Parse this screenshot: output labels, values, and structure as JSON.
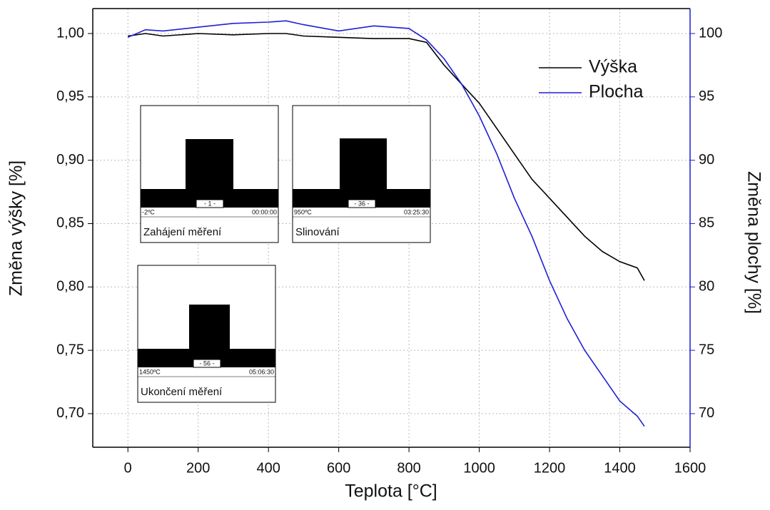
{
  "chart_data": {
    "type": "line",
    "xlabel": "Teplota [°C]",
    "ylabel": "Změna výšky [%]",
    "y2label": "Změna plochy [%]",
    "x": [
      0,
      50,
      100,
      200,
      300,
      400,
      450,
      500,
      600,
      700,
      800,
      850,
      900,
      950,
      1000,
      1050,
      1100,
      1150,
      1200,
      1250,
      1300,
      1350,
      1400,
      1450,
      1470
    ],
    "series": [
      {
        "name": "Výška",
        "color": "#000000",
        "axis": "y",
        "values": [
          0.998,
          1.0,
          0.998,
          1.0,
          0.999,
          1.0,
          1.0,
          0.998,
          0.997,
          0.996,
          0.996,
          0.993,
          0.975,
          0.96,
          0.945,
          0.925,
          0.905,
          0.885,
          0.87,
          0.855,
          0.84,
          0.828,
          0.82,
          0.815,
          0.805
        ]
      },
      {
        "name": "Plocha",
        "color": "#1f1fd6",
        "axis": "y2",
        "values": [
          99.7,
          100.3,
          100.2,
          100.5,
          100.8,
          100.9,
          101.0,
          100.7,
          100.2,
          100.6,
          100.4,
          99.5,
          98,
          96,
          93.5,
          90.5,
          87,
          84,
          80.5,
          77.5,
          75,
          73,
          71,
          69.8,
          69
        ]
      }
    ],
    "xlim": [
      -100,
      1600
    ],
    "xticks": [
      0,
      200,
      400,
      600,
      800,
      1000,
      1200,
      1400,
      1600
    ],
    "ylim": [
      0.6735,
      1.0197
    ],
    "yticks": [
      {
        "value": 0.7,
        "label": "0,70"
      },
      {
        "value": 0.75,
        "label": "0,75"
      },
      {
        "value": 0.8,
        "label": "0,80"
      },
      {
        "value": 0.85,
        "label": "0,85"
      },
      {
        "value": 0.9,
        "label": "0,90"
      },
      {
        "value": 0.95,
        "label": "0,95"
      },
      {
        "value": 1.0,
        "label": "1,00"
      }
    ],
    "y2lim": [
      67.35,
      101.97
    ],
    "y2ticks": [
      70,
      75,
      80,
      85,
      90,
      95,
      100
    ],
    "y2color": "#1f1fd6",
    "grid": true,
    "legend": "upper right",
    "insets": [
      {
        "counter": "- 1 -",
        "temp": "-2ºC",
        "time": "00:00:00",
        "caption": "Zahájení měření"
      },
      {
        "counter": "- 36 -",
        "temp": "950ºC",
        "time": "03:25:30",
        "caption": "Slinování"
      },
      {
        "counter": "- 56 -",
        "temp": "1450ºC",
        "time": "05:06:30",
        "caption": "Ukončení měření"
      }
    ]
  }
}
